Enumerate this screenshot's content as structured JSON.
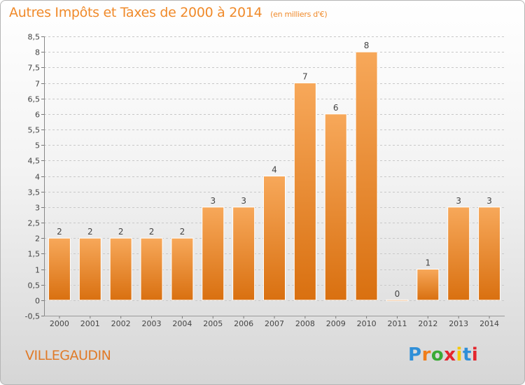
{
  "header": {
    "title": "Autres Impôts et Taxes de 2000 à 2014",
    "unit": "(en milliers d'€)"
  },
  "footer": {
    "commune": "VILLEGAUDIN",
    "logo": "Proxiti"
  },
  "colors": {
    "bar_top": "#f7a85a",
    "bar_bottom": "#d97010",
    "title": "#f08a2a",
    "axis_text": "#444444",
    "grid": "#c8c8c8"
  },
  "chart_data": {
    "type": "bar",
    "title": "Autres Impôts et Taxes de 2000 à 2014",
    "ylabel": "",
    "xlabel": "",
    "categories": [
      "2000",
      "2001",
      "2002",
      "2003",
      "2004",
      "2005",
      "2006",
      "2007",
      "2008",
      "2009",
      "2010",
      "2011",
      "2012",
      "2013",
      "2014"
    ],
    "values": [
      2,
      2,
      2,
      2,
      2,
      3,
      3,
      4,
      7,
      6,
      8,
      0,
      1,
      3,
      3
    ],
    "data_labels": [
      "2",
      "2",
      "2",
      "2",
      "2",
      "3",
      "3",
      "4",
      "7",
      "6",
      "8",
      "0",
      "1",
      "3",
      "3"
    ],
    "ylim": [
      -0.5,
      8.5
    ],
    "yticks": [
      -0.5,
      0,
      0.5,
      1,
      1.5,
      2,
      2.5,
      3,
      3.5,
      4,
      4.5,
      5,
      5.5,
      6,
      6.5,
      7,
      7.5,
      8,
      8.5
    ],
    "ytick_labels": [
      "-0,5",
      "0",
      "0,5",
      "1",
      "1,5",
      "2",
      "2,5",
      "3",
      "3,5",
      "4",
      "4,5",
      "5",
      "5,5",
      "6",
      "6,5",
      "7",
      "7,5",
      "8",
      "8,5"
    ],
    "grid": "horizontal dashed",
    "legend": "none"
  }
}
